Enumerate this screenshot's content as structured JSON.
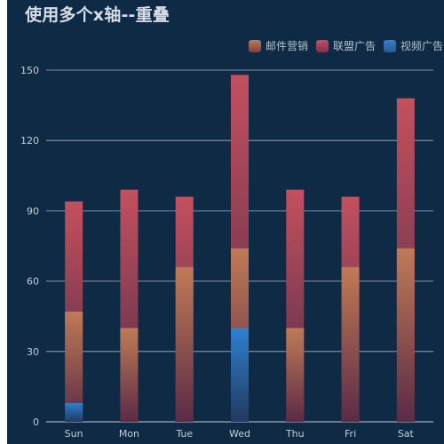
{
  "title": "使用多个x轴--重叠",
  "chart_data": {
    "type": "bar",
    "title": "使用多个x轴--重叠",
    "categories": [
      "Sun",
      "Mon",
      "Tue",
      "Wed",
      "Thu",
      "Fri",
      "Sat"
    ],
    "ylim": [
      0,
      150
    ],
    "yticks": [
      0,
      30,
      60,
      90,
      120,
      150
    ],
    "grid": true,
    "legend_position": "top-right",
    "series": [
      {
        "name": "联盟广告",
        "values": [
          94,
          99,
          96,
          148,
          99,
          96,
          138
        ],
        "color_top": "#c4505e",
        "color_bottom": "#4e2a4a"
      },
      {
        "name": "邮件营销",
        "values": [
          47,
          40,
          66,
          74,
          40,
          66,
          74
        ],
        "color_top": "#c07a56",
        "color_bottom": "#5a2b46"
      },
      {
        "name": "视频广告",
        "values": [
          8,
          0,
          0,
          40,
          0,
          0,
          0
        ],
        "color_top": "#2f80cf",
        "color_bottom": "#23395e"
      }
    ],
    "legend": [
      "邮件营销",
      "联盟广告",
      "视频广告"
    ]
  }
}
